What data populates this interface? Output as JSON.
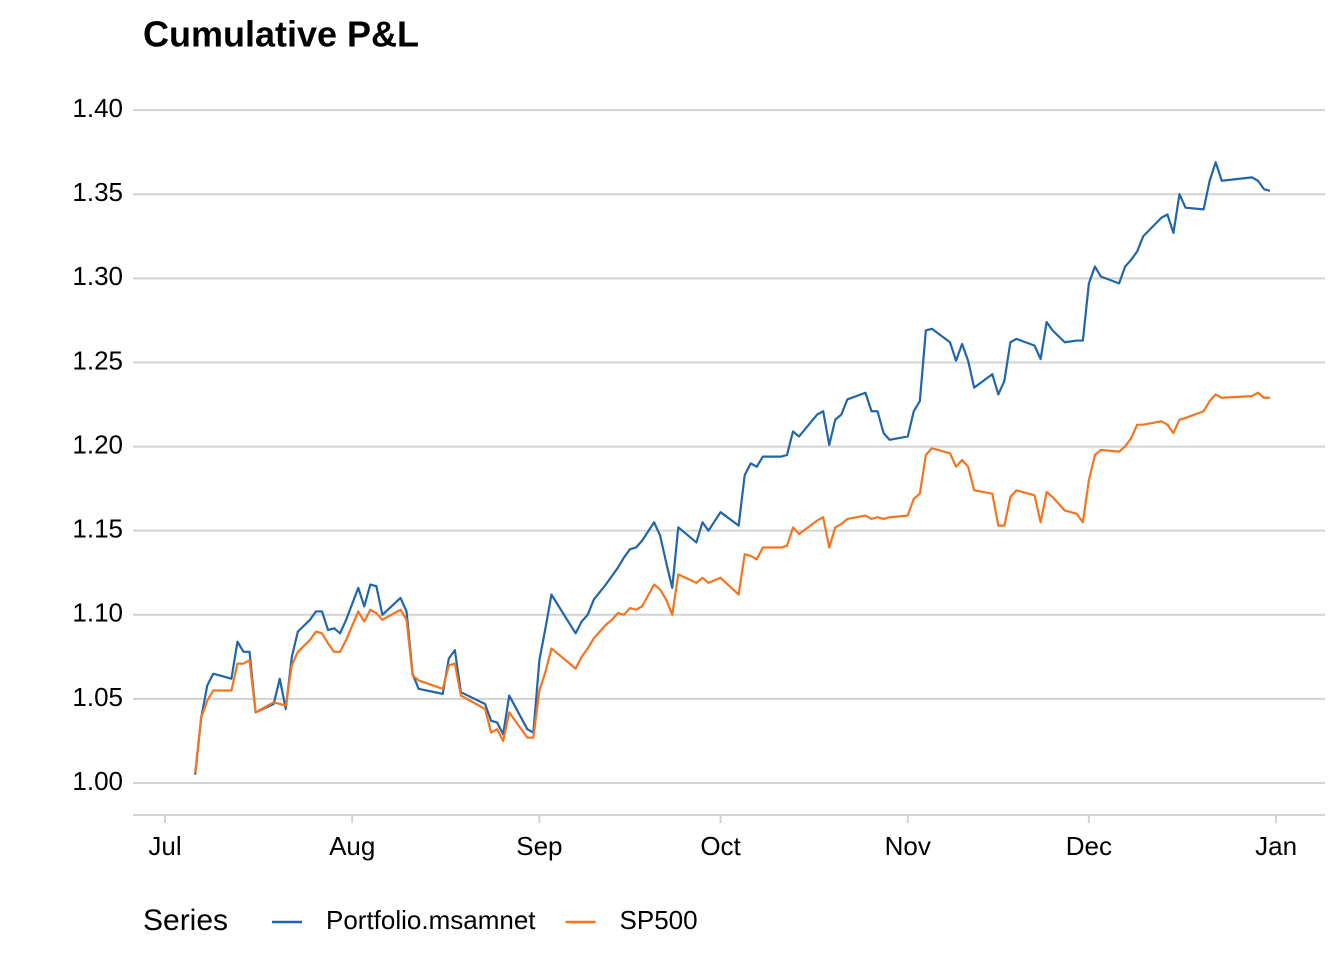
{
  "chart_data": {
    "type": "line",
    "title": "Cumulative P&L",
    "legend_title": "Series",
    "legend": "bottom",
    "grid": true,
    "xlim": [
      -5.3,
      192.1
    ],
    "xticks": [
      {
        "value": 0,
        "label": "Jul"
      },
      {
        "value": 31,
        "label": "Aug"
      },
      {
        "value": 62,
        "label": "Sep"
      },
      {
        "value": 92,
        "label": "Oct"
      },
      {
        "value": 123,
        "label": "Nov"
      },
      {
        "value": 153,
        "label": "Dec"
      },
      {
        "value": 184,
        "label": "Jan"
      }
    ],
    "ylim": [
      0.981,
      1.406
    ],
    "yticks": [
      {
        "value": 1.0,
        "label": "1.00"
      },
      1.05,
      {
        "value": 1.1,
        "label": "1.10"
      },
      1.15,
      {
        "value": 1.2,
        "label": "1.20"
      },
      1.25,
      {
        "value": 1.3,
        "label": "1.30"
      },
      1.35,
      {
        "value": 1.4,
        "label": "1.40"
      }
    ],
    "x": [
      5,
      6,
      7,
      8,
      11,
      12,
      13,
      14,
      15,
      18,
      19,
      20,
      21,
      22,
      24,
      25,
      26,
      27,
      28,
      29,
      30,
      32,
      33,
      34,
      35,
      36,
      39,
      40,
      41,
      42,
      46,
      47,
      48,
      49,
      53,
      54,
      55,
      56,
      57,
      60,
      61,
      62,
      63,
      64,
      68,
      69,
      70,
      71,
      73,
      74,
      75,
      76,
      77,
      78,
      79,
      81,
      82,
      83,
      84,
      85,
      88,
      89,
      90,
      92,
      95,
      96,
      97,
      98,
      99,
      102,
      103,
      104,
      105,
      108,
      109,
      110,
      111,
      112,
      113,
      116,
      117,
      118,
      119,
      120,
      123,
      124,
      125,
      126,
      127,
      130,
      131,
      132,
      133,
      134,
      137,
      138,
      139,
      140,
      141,
      144,
      145,
      146,
      147,
      149,
      151,
      152,
      153,
      154,
      155,
      158,
      159,
      160,
      161,
      162,
      165,
      166,
      167,
      168,
      169,
      172,
      173,
      174,
      175,
      180,
      181,
      182,
      183
    ],
    "series": [
      {
        "name": "Portfolio.msamnet",
        "color": "#2166a8",
        "values": [
          1.005,
          1.039,
          1.058,
          1.065,
          1.062,
          1.084,
          1.078,
          1.078,
          1.042,
          1.047,
          1.062,
          1.044,
          1.075,
          1.09,
          1.097,
          1.102,
          1.102,
          1.091,
          1.092,
          1.089,
          1.097,
          1.116,
          1.105,
          1.118,
          1.117,
          1.1,
          1.11,
          1.102,
          1.065,
          1.056,
          1.053,
          1.074,
          1.079,
          1.054,
          1.047,
          1.037,
          1.036,
          1.029,
          1.052,
          1.032,
          1.03,
          1.073,
          1.092,
          1.112,
          1.089,
          1.096,
          1.1,
          1.109,
          1.118,
          1.123,
          1.128,
          1.134,
          1.139,
          1.14,
          1.144,
          1.155,
          1.147,
          1.131,
          1.116,
          1.152,
          1.143,
          1.155,
          1.15,
          1.161,
          1.153,
          1.183,
          1.19,
          1.188,
          1.194,
          1.194,
          1.195,
          1.209,
          1.206,
          1.219,
          1.221,
          1.201,
          1.216,
          1.219,
          1.228,
          1.232,
          1.221,
          1.221,
          1.208,
          1.204,
          1.206,
          1.221,
          1.227,
          1.269,
          1.27,
          1.262,
          1.251,
          1.261,
          1.251,
          1.235,
          1.243,
          1.231,
          1.239,
          1.262,
          1.264,
          1.26,
          1.252,
          1.274,
          1.269,
          1.262,
          1.263,
          1.263,
          1.297,
          1.307,
          1.301,
          1.297,
          1.307,
          1.311,
          1.316,
          1.325,
          1.336,
          1.338,
          1.327,
          1.35,
          1.342,
          1.341,
          1.358,
          1.369,
          1.358,
          1.36,
          1.358,
          1.353,
          1.352
        ]
      },
      {
        "name": "SP500",
        "color": "#f57420",
        "values": [
          1.006,
          1.039,
          1.049,
          1.055,
          1.055,
          1.071,
          1.071,
          1.073,
          1.042,
          1.048,
          1.047,
          1.046,
          1.07,
          1.078,
          1.085,
          1.09,
          1.089,
          1.083,
          1.078,
          1.078,
          1.085,
          1.102,
          1.096,
          1.103,
          1.101,
          1.097,
          1.103,
          1.097,
          1.064,
          1.061,
          1.056,
          1.07,
          1.071,
          1.052,
          1.044,
          1.03,
          1.032,
          1.025,
          1.042,
          1.027,
          1.027,
          1.055,
          1.066,
          1.08,
          1.068,
          1.075,
          1.08,
          1.086,
          1.094,
          1.097,
          1.101,
          1.1,
          1.104,
          1.103,
          1.105,
          1.118,
          1.115,
          1.109,
          1.1,
          1.124,
          1.119,
          1.122,
          1.119,
          1.122,
          1.112,
          1.136,
          1.135,
          1.133,
          1.14,
          1.14,
          1.141,
          1.152,
          1.148,
          1.156,
          1.158,
          1.14,
          1.152,
          1.154,
          1.157,
          1.159,
          1.157,
          1.158,
          1.157,
          1.158,
          1.159,
          1.169,
          1.172,
          1.195,
          1.199,
          1.196,
          1.188,
          1.192,
          1.188,
          1.174,
          1.172,
          1.153,
          1.153,
          1.17,
          1.174,
          1.171,
          1.155,
          1.173,
          1.17,
          1.162,
          1.16,
          1.155,
          1.18,
          1.195,
          1.198,
          1.197,
          1.2,
          1.205,
          1.213,
          1.213,
          1.215,
          1.213,
          1.208,
          1.216,
          1.217,
          1.221,
          1.227,
          1.231,
          1.229,
          1.23,
          1.232,
          1.229,
          1.229
        ]
      }
    ]
  }
}
